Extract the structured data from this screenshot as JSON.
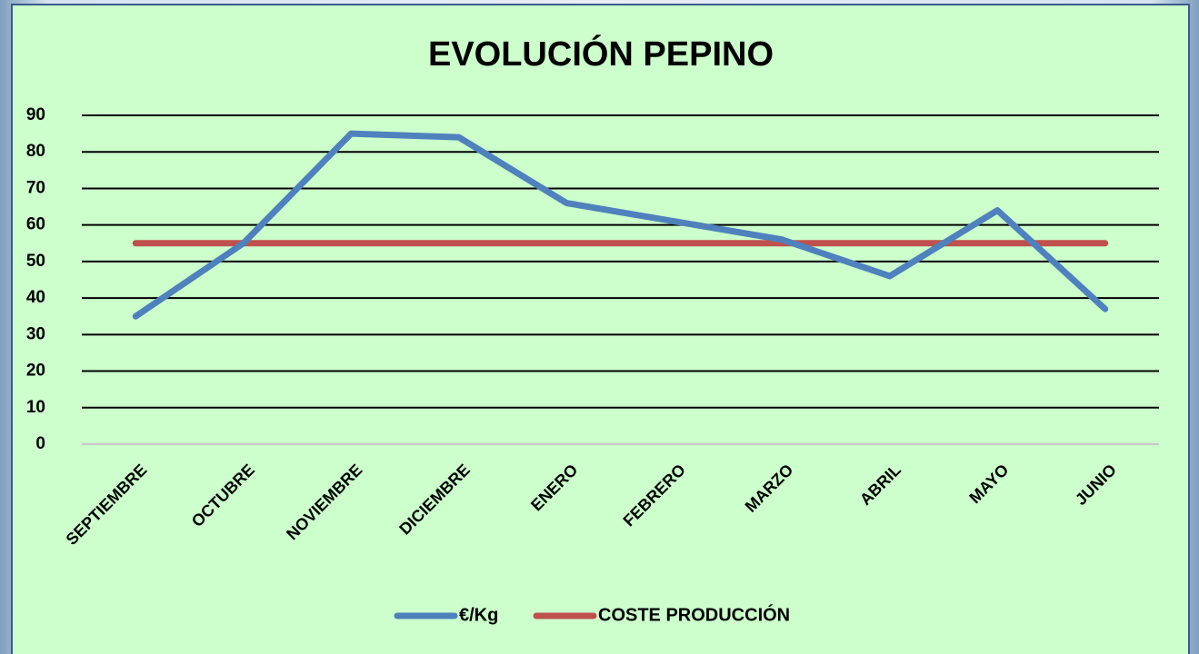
{
  "chart_data": {
    "type": "line",
    "title": "EVOLUCIÓN PEPINO",
    "categories": [
      "SEPTIEMBRE",
      "OCTUBRE",
      "NOVIEMBRE",
      "DICIEMBRE",
      "ENERO",
      "FEBRERO",
      "MARZO",
      "ABRIL",
      "MAYO",
      "JUNIO"
    ],
    "series": [
      {
        "name": "€/Kg",
        "color": "#4f81bd",
        "values": [
          35,
          55,
          85,
          84,
          66,
          61,
          56,
          46,
          64,
          37
        ]
      },
      {
        "name": "COSTE PRODUCCIÓN",
        "color": "#c0504d",
        "values": [
          55,
          55,
          55,
          55,
          55,
          55,
          55,
          55,
          55,
          55
        ]
      }
    ],
    "ylim": [
      0,
      90
    ],
    "yticks": [
      0,
      10,
      20,
      30,
      40,
      50,
      60,
      70,
      80,
      90
    ],
    "grid": true,
    "legend": "bottom"
  }
}
